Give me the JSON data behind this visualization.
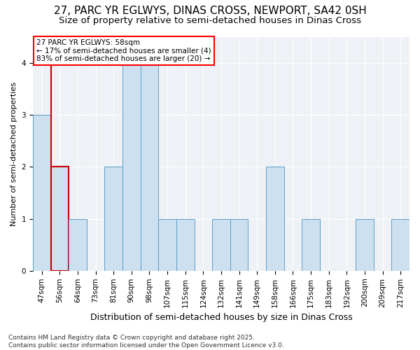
{
  "title": "27, PARC YR EGLWYS, DINAS CROSS, NEWPORT, SA42 0SH",
  "subtitle": "Size of property relative to semi-detached houses in Dinas Cross",
  "xlabel": "Distribution of semi-detached houses by size in Dinas Cross",
  "ylabel": "Number of semi-detached properties",
  "categories": [
    "47sqm",
    "56sqm",
    "64sqm",
    "73sqm",
    "81sqm",
    "90sqm",
    "98sqm",
    "107sqm",
    "115sqm",
    "124sqm",
    "132sqm",
    "141sqm",
    "149sqm",
    "158sqm",
    "166sqm",
    "175sqm",
    "183sqm",
    "192sqm",
    "200sqm",
    "209sqm",
    "217sqm"
  ],
  "values": [
    3,
    2,
    1,
    0,
    2,
    4,
    4,
    1,
    1,
    0,
    1,
    1,
    0,
    2,
    0,
    1,
    0,
    0,
    1,
    0,
    1
  ],
  "bar_color": "#cce0f0",
  "bar_edge_color": "#5b9ec9",
  "highlight_bar_idx": 1,
  "highlight_color": "#cc0000",
  "annotation_text": "27 PARC YR EGLWYS: 58sqm\n← 17% of semi-detached houses are smaller (4)\n83% of semi-detached houses are larger (20) →",
  "ylim": [
    0,
    4.5
  ],
  "yticks": [
    0,
    1,
    2,
    3,
    4
  ],
  "footer": "Contains HM Land Registry data © Crown copyright and database right 2025.\nContains public sector information licensed under the Open Government Licence v3.0.",
  "title_fontsize": 11,
  "subtitle_fontsize": 9.5,
  "xlabel_fontsize": 9,
  "ylabel_fontsize": 8,
  "tick_fontsize": 7.5,
  "annotation_fontsize": 7.5,
  "footer_fontsize": 6.5,
  "bg_color": "#eef2f7"
}
